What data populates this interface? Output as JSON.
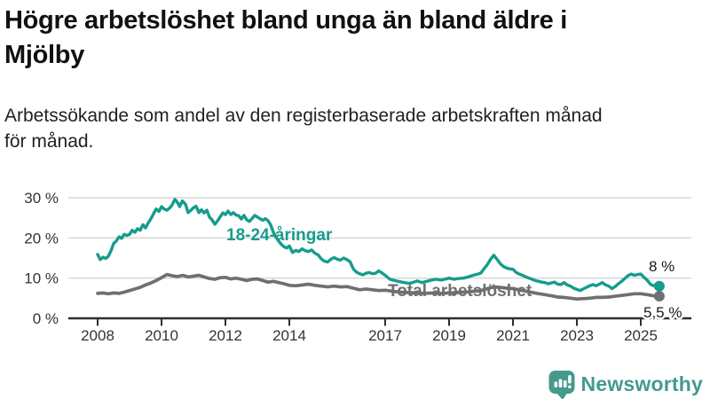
{
  "header": {
    "title_lines": [
      "Högre arbetslöshet bland unga än bland äldre i",
      "Mjölby"
    ],
    "subtitle_lines": [
      "Arbetssökande som andel av den registerbaserade arbetskraften månad",
      "för månad."
    ]
  },
  "chart_data": {
    "type": "line",
    "unit": "%",
    "ylim": [
      0,
      30
    ],
    "xlim": [
      2008,
      2025.6
    ],
    "grid": "horizontal gridlines at 10, 20, 30",
    "legend_position": "inline labels on lines",
    "yticks": [
      {
        "value": 0,
        "label": "0 %"
      },
      {
        "value": 10,
        "label": "10 %"
      },
      {
        "value": 20,
        "label": "20 %"
      },
      {
        "value": 30,
        "label": "30 %"
      }
    ],
    "xticks": [
      {
        "year": 2008,
        "label": "2008"
      },
      {
        "year": 2010,
        "label": "2010"
      },
      {
        "year": 2012,
        "label": "2012"
      },
      {
        "year": 2014,
        "label": "2014"
      },
      {
        "year": 2017,
        "label": "2017"
      },
      {
        "year": 2019,
        "label": "2019"
      },
      {
        "year": 2021,
        "label": "2021"
      },
      {
        "year": 2023,
        "label": "2023"
      },
      {
        "year": 2025,
        "label": "2025"
      }
    ],
    "series": [
      {
        "name": "18-24-åringar",
        "color": "#159c8d",
        "end_label": "8 %",
        "end_value": 8,
        "points": [
          [
            2008.0,
            15.9
          ],
          [
            2008.08,
            14.6
          ],
          [
            2008.17,
            15.2
          ],
          [
            2008.25,
            14.9
          ],
          [
            2008.33,
            15.4
          ],
          [
            2008.42,
            16.8
          ],
          [
            2008.5,
            18.6
          ],
          [
            2008.58,
            19.2
          ],
          [
            2008.67,
            20.3
          ],
          [
            2008.75,
            19.9
          ],
          [
            2008.83,
            20.9
          ],
          [
            2008.92,
            20.6
          ],
          [
            2009.0,
            20.9
          ],
          [
            2009.08,
            21.9
          ],
          [
            2009.17,
            21.4
          ],
          [
            2009.25,
            22.3
          ],
          [
            2009.33,
            21.9
          ],
          [
            2009.42,
            23.3
          ],
          [
            2009.5,
            22.5
          ],
          [
            2009.58,
            23.7
          ],
          [
            2009.67,
            24.8
          ],
          [
            2009.75,
            26.0
          ],
          [
            2009.83,
            27.2
          ],
          [
            2009.92,
            26.6
          ],
          [
            2010.0,
            27.8
          ],
          [
            2010.08,
            27.2
          ],
          [
            2010.17,
            26.9
          ],
          [
            2010.25,
            27.4
          ],
          [
            2010.33,
            28.2
          ],
          [
            2010.42,
            29.6
          ],
          [
            2010.5,
            28.8
          ],
          [
            2010.57,
            27.8
          ],
          [
            2010.65,
            29.2
          ],
          [
            2010.75,
            28.4
          ],
          [
            2010.83,
            26.3
          ],
          [
            2010.92,
            26.9
          ],
          [
            2011.0,
            27.5
          ],
          [
            2011.08,
            27.9
          ],
          [
            2011.17,
            26.3
          ],
          [
            2011.25,
            27.0
          ],
          [
            2011.33,
            26.2
          ],
          [
            2011.42,
            26.9
          ],
          [
            2011.5,
            25.2
          ],
          [
            2011.58,
            24.5
          ],
          [
            2011.67,
            23.4
          ],
          [
            2011.75,
            24.2
          ],
          [
            2011.83,
            25.2
          ],
          [
            2011.92,
            26.2
          ],
          [
            2012.0,
            25.8
          ],
          [
            2012.08,
            26.7
          ],
          [
            2012.17,
            25.8
          ],
          [
            2012.25,
            26.3
          ],
          [
            2012.33,
            25.7
          ],
          [
            2012.42,
            25.5
          ],
          [
            2012.5,
            24.7
          ],
          [
            2012.58,
            25.6
          ],
          [
            2012.67,
            24.5
          ],
          [
            2012.75,
            24.1
          ],
          [
            2012.83,
            24.8
          ],
          [
            2012.92,
            25.6
          ],
          [
            2013.0,
            25.2
          ],
          [
            2013.08,
            24.8
          ],
          [
            2013.17,
            24.4
          ],
          [
            2013.25,
            24.8
          ],
          [
            2013.33,
            24.3
          ],
          [
            2013.42,
            23.2
          ],
          [
            2013.5,
            21.4
          ],
          [
            2013.58,
            20.2
          ],
          [
            2013.67,
            19.2
          ],
          [
            2013.75,
            18.4
          ],
          [
            2013.83,
            17.8
          ],
          [
            2013.92,
            17.5
          ],
          [
            2014.0,
            18.0
          ],
          [
            2014.1,
            16.4
          ],
          [
            2014.2,
            16.9
          ],
          [
            2014.3,
            16.6
          ],
          [
            2014.4,
            17.3
          ],
          [
            2014.5,
            16.8
          ],
          [
            2014.6,
            16.6
          ],
          [
            2014.7,
            17.0
          ],
          [
            2014.8,
            16.2
          ],
          [
            2014.9,
            15.8
          ],
          [
            2015.0,
            14.8
          ],
          [
            2015.1,
            14.2
          ],
          [
            2015.2,
            14.0
          ],
          [
            2015.3,
            14.7
          ],
          [
            2015.4,
            15.1
          ],
          [
            2015.5,
            14.7
          ],
          [
            2015.6,
            14.5
          ],
          [
            2015.7,
            15.0
          ],
          [
            2015.8,
            14.6
          ],
          [
            2015.9,
            14.1
          ],
          [
            2016.0,
            12.3
          ],
          [
            2016.1,
            11.5
          ],
          [
            2016.2,
            11.1
          ],
          [
            2016.3,
            10.8
          ],
          [
            2016.4,
            11.2
          ],
          [
            2016.5,
            11.4
          ],
          [
            2016.6,
            11.1
          ],
          [
            2016.7,
            11.2
          ],
          [
            2016.8,
            11.8
          ],
          [
            2016.9,
            11.3
          ],
          [
            2017.0,
            10.7
          ],
          [
            2017.15,
            9.7
          ],
          [
            2017.3,
            9.4
          ],
          [
            2017.45,
            9.1
          ],
          [
            2017.6,
            8.9
          ],
          [
            2017.75,
            8.7
          ],
          [
            2017.9,
            9.0
          ],
          [
            2018.0,
            9.3
          ],
          [
            2018.15,
            8.9
          ],
          [
            2018.3,
            9.2
          ],
          [
            2018.45,
            9.5
          ],
          [
            2018.6,
            9.7
          ],
          [
            2018.75,
            9.5
          ],
          [
            2018.9,
            9.8
          ],
          [
            2019.0,
            10.0
          ],
          [
            2019.15,
            9.7
          ],
          [
            2019.3,
            9.9
          ],
          [
            2019.45,
            10.0
          ],
          [
            2019.6,
            10.3
          ],
          [
            2019.75,
            10.7
          ],
          [
            2019.9,
            11.0
          ],
          [
            2020.0,
            11.3
          ],
          [
            2020.1,
            12.4
          ],
          [
            2020.2,
            13.4
          ],
          [
            2020.3,
            14.7
          ],
          [
            2020.4,
            15.7
          ],
          [
            2020.5,
            14.7
          ],
          [
            2020.6,
            13.6
          ],
          [
            2020.7,
            12.9
          ],
          [
            2020.8,
            12.5
          ],
          [
            2020.9,
            12.3
          ],
          [
            2021.0,
            12.2
          ],
          [
            2021.1,
            11.4
          ],
          [
            2021.2,
            11.0
          ],
          [
            2021.3,
            10.7
          ],
          [
            2021.4,
            10.3
          ],
          [
            2021.5,
            10.0
          ],
          [
            2021.6,
            9.7
          ],
          [
            2021.7,
            9.4
          ],
          [
            2021.8,
            9.2
          ],
          [
            2021.9,
            9.0
          ],
          [
            2022.0,
            8.9
          ],
          [
            2022.1,
            8.6
          ],
          [
            2022.2,
            8.8
          ],
          [
            2022.3,
            9.0
          ],
          [
            2022.4,
            8.5
          ],
          [
            2022.5,
            8.4
          ],
          [
            2022.6,
            8.9
          ],
          [
            2022.7,
            8.3
          ],
          [
            2022.8,
            8.0
          ],
          [
            2022.9,
            7.5
          ],
          [
            2023.0,
            7.2
          ],
          [
            2023.1,
            6.9
          ],
          [
            2023.2,
            7.3
          ],
          [
            2023.3,
            7.7
          ],
          [
            2023.4,
            8.1
          ],
          [
            2023.5,
            8.4
          ],
          [
            2023.6,
            8.1
          ],
          [
            2023.7,
            8.5
          ],
          [
            2023.8,
            8.9
          ],
          [
            2023.9,
            8.3
          ],
          [
            2024.0,
            8.0
          ],
          [
            2024.1,
            7.4
          ],
          [
            2024.2,
            7.9
          ],
          [
            2024.3,
            8.6
          ],
          [
            2024.4,
            9.2
          ],
          [
            2024.5,
            9.9
          ],
          [
            2024.6,
            10.6
          ],
          [
            2024.7,
            11.0
          ],
          [
            2024.8,
            10.7
          ],
          [
            2024.9,
            10.9
          ],
          [
            2025.0,
            11.0
          ],
          [
            2025.1,
            10.2
          ],
          [
            2025.2,
            9.5
          ],
          [
            2025.3,
            8.5
          ],
          [
            2025.4,
            8.1
          ],
          [
            2025.5,
            8.4
          ],
          [
            2025.58,
            8.0
          ]
        ]
      },
      {
        "name": "Total arbetslöshet",
        "color": "#6f6f6f",
        "end_label": "5,5 %",
        "end_value": 5.5,
        "points": [
          [
            2008.0,
            6.2
          ],
          [
            2008.17,
            6.3
          ],
          [
            2008.33,
            6.1
          ],
          [
            2008.5,
            6.3
          ],
          [
            2008.67,
            6.2
          ],
          [
            2008.83,
            6.5
          ],
          [
            2009.0,
            6.9
          ],
          [
            2009.17,
            7.3
          ],
          [
            2009.33,
            7.7
          ],
          [
            2009.5,
            8.3
          ],
          [
            2009.67,
            8.8
          ],
          [
            2009.83,
            9.4
          ],
          [
            2010.0,
            10.1
          ],
          [
            2010.17,
            10.9
          ],
          [
            2010.33,
            10.6
          ],
          [
            2010.5,
            10.4
          ],
          [
            2010.67,
            10.7
          ],
          [
            2010.83,
            10.3
          ],
          [
            2011.0,
            10.5
          ],
          [
            2011.17,
            10.7
          ],
          [
            2011.33,
            10.3
          ],
          [
            2011.5,
            9.9
          ],
          [
            2011.67,
            9.7
          ],
          [
            2011.83,
            10.1
          ],
          [
            2012.0,
            10.2
          ],
          [
            2012.17,
            9.8
          ],
          [
            2012.33,
            10.0
          ],
          [
            2012.5,
            9.7
          ],
          [
            2012.67,
            9.4
          ],
          [
            2012.83,
            9.7
          ],
          [
            2013.0,
            9.8
          ],
          [
            2013.17,
            9.4
          ],
          [
            2013.33,
            9.0
          ],
          [
            2013.5,
            9.2
          ],
          [
            2013.67,
            8.9
          ],
          [
            2013.83,
            8.6
          ],
          [
            2014.0,
            8.2
          ],
          [
            2014.2,
            8.1
          ],
          [
            2014.4,
            8.3
          ],
          [
            2014.6,
            8.5
          ],
          [
            2014.8,
            8.2
          ],
          [
            2015.0,
            8.0
          ],
          [
            2015.2,
            7.8
          ],
          [
            2015.4,
            8.0
          ],
          [
            2015.6,
            7.8
          ],
          [
            2015.8,
            7.9
          ],
          [
            2016.0,
            7.5
          ],
          [
            2016.2,
            7.1
          ],
          [
            2016.4,
            7.3
          ],
          [
            2016.6,
            7.1
          ],
          [
            2016.8,
            6.9
          ],
          [
            2017.0,
            7.0
          ],
          [
            2017.25,
            6.7
          ],
          [
            2017.5,
            6.5
          ],
          [
            2017.75,
            6.4
          ],
          [
            2018.0,
            6.3
          ],
          [
            2018.25,
            6.2
          ],
          [
            2018.5,
            6.3
          ],
          [
            2018.75,
            6.2
          ],
          [
            2019.0,
            6.3
          ],
          [
            2019.25,
            6.4
          ],
          [
            2019.5,
            6.5
          ],
          [
            2019.75,
            6.7
          ],
          [
            2020.0,
            6.9
          ],
          [
            2020.2,
            7.4
          ],
          [
            2020.4,
            7.8
          ],
          [
            2020.6,
            7.7
          ],
          [
            2020.8,
            7.5
          ],
          [
            2021.0,
            7.4
          ],
          [
            2021.25,
            7.0
          ],
          [
            2021.5,
            6.6
          ],
          [
            2021.75,
            6.2
          ],
          [
            2022.0,
            5.9
          ],
          [
            2022.2,
            5.6
          ],
          [
            2022.4,
            5.3
          ],
          [
            2022.6,
            5.2
          ],
          [
            2022.8,
            5.0
          ],
          [
            2023.0,
            4.8
          ],
          [
            2023.2,
            4.9
          ],
          [
            2023.4,
            5.0
          ],
          [
            2023.6,
            5.2
          ],
          [
            2023.8,
            5.2
          ],
          [
            2024.0,
            5.3
          ],
          [
            2024.2,
            5.5
          ],
          [
            2024.4,
            5.7
          ],
          [
            2024.6,
            5.9
          ],
          [
            2024.8,
            6.1
          ],
          [
            2025.0,
            6.1
          ],
          [
            2025.2,
            5.9
          ],
          [
            2025.4,
            5.6
          ],
          [
            2025.58,
            5.5
          ]
        ]
      }
    ]
  },
  "footer": {
    "brand": "Newsworthy",
    "logo_icon": "newsworthy-bar-chart-bubble-icon",
    "brand_color": "#459a8d"
  }
}
